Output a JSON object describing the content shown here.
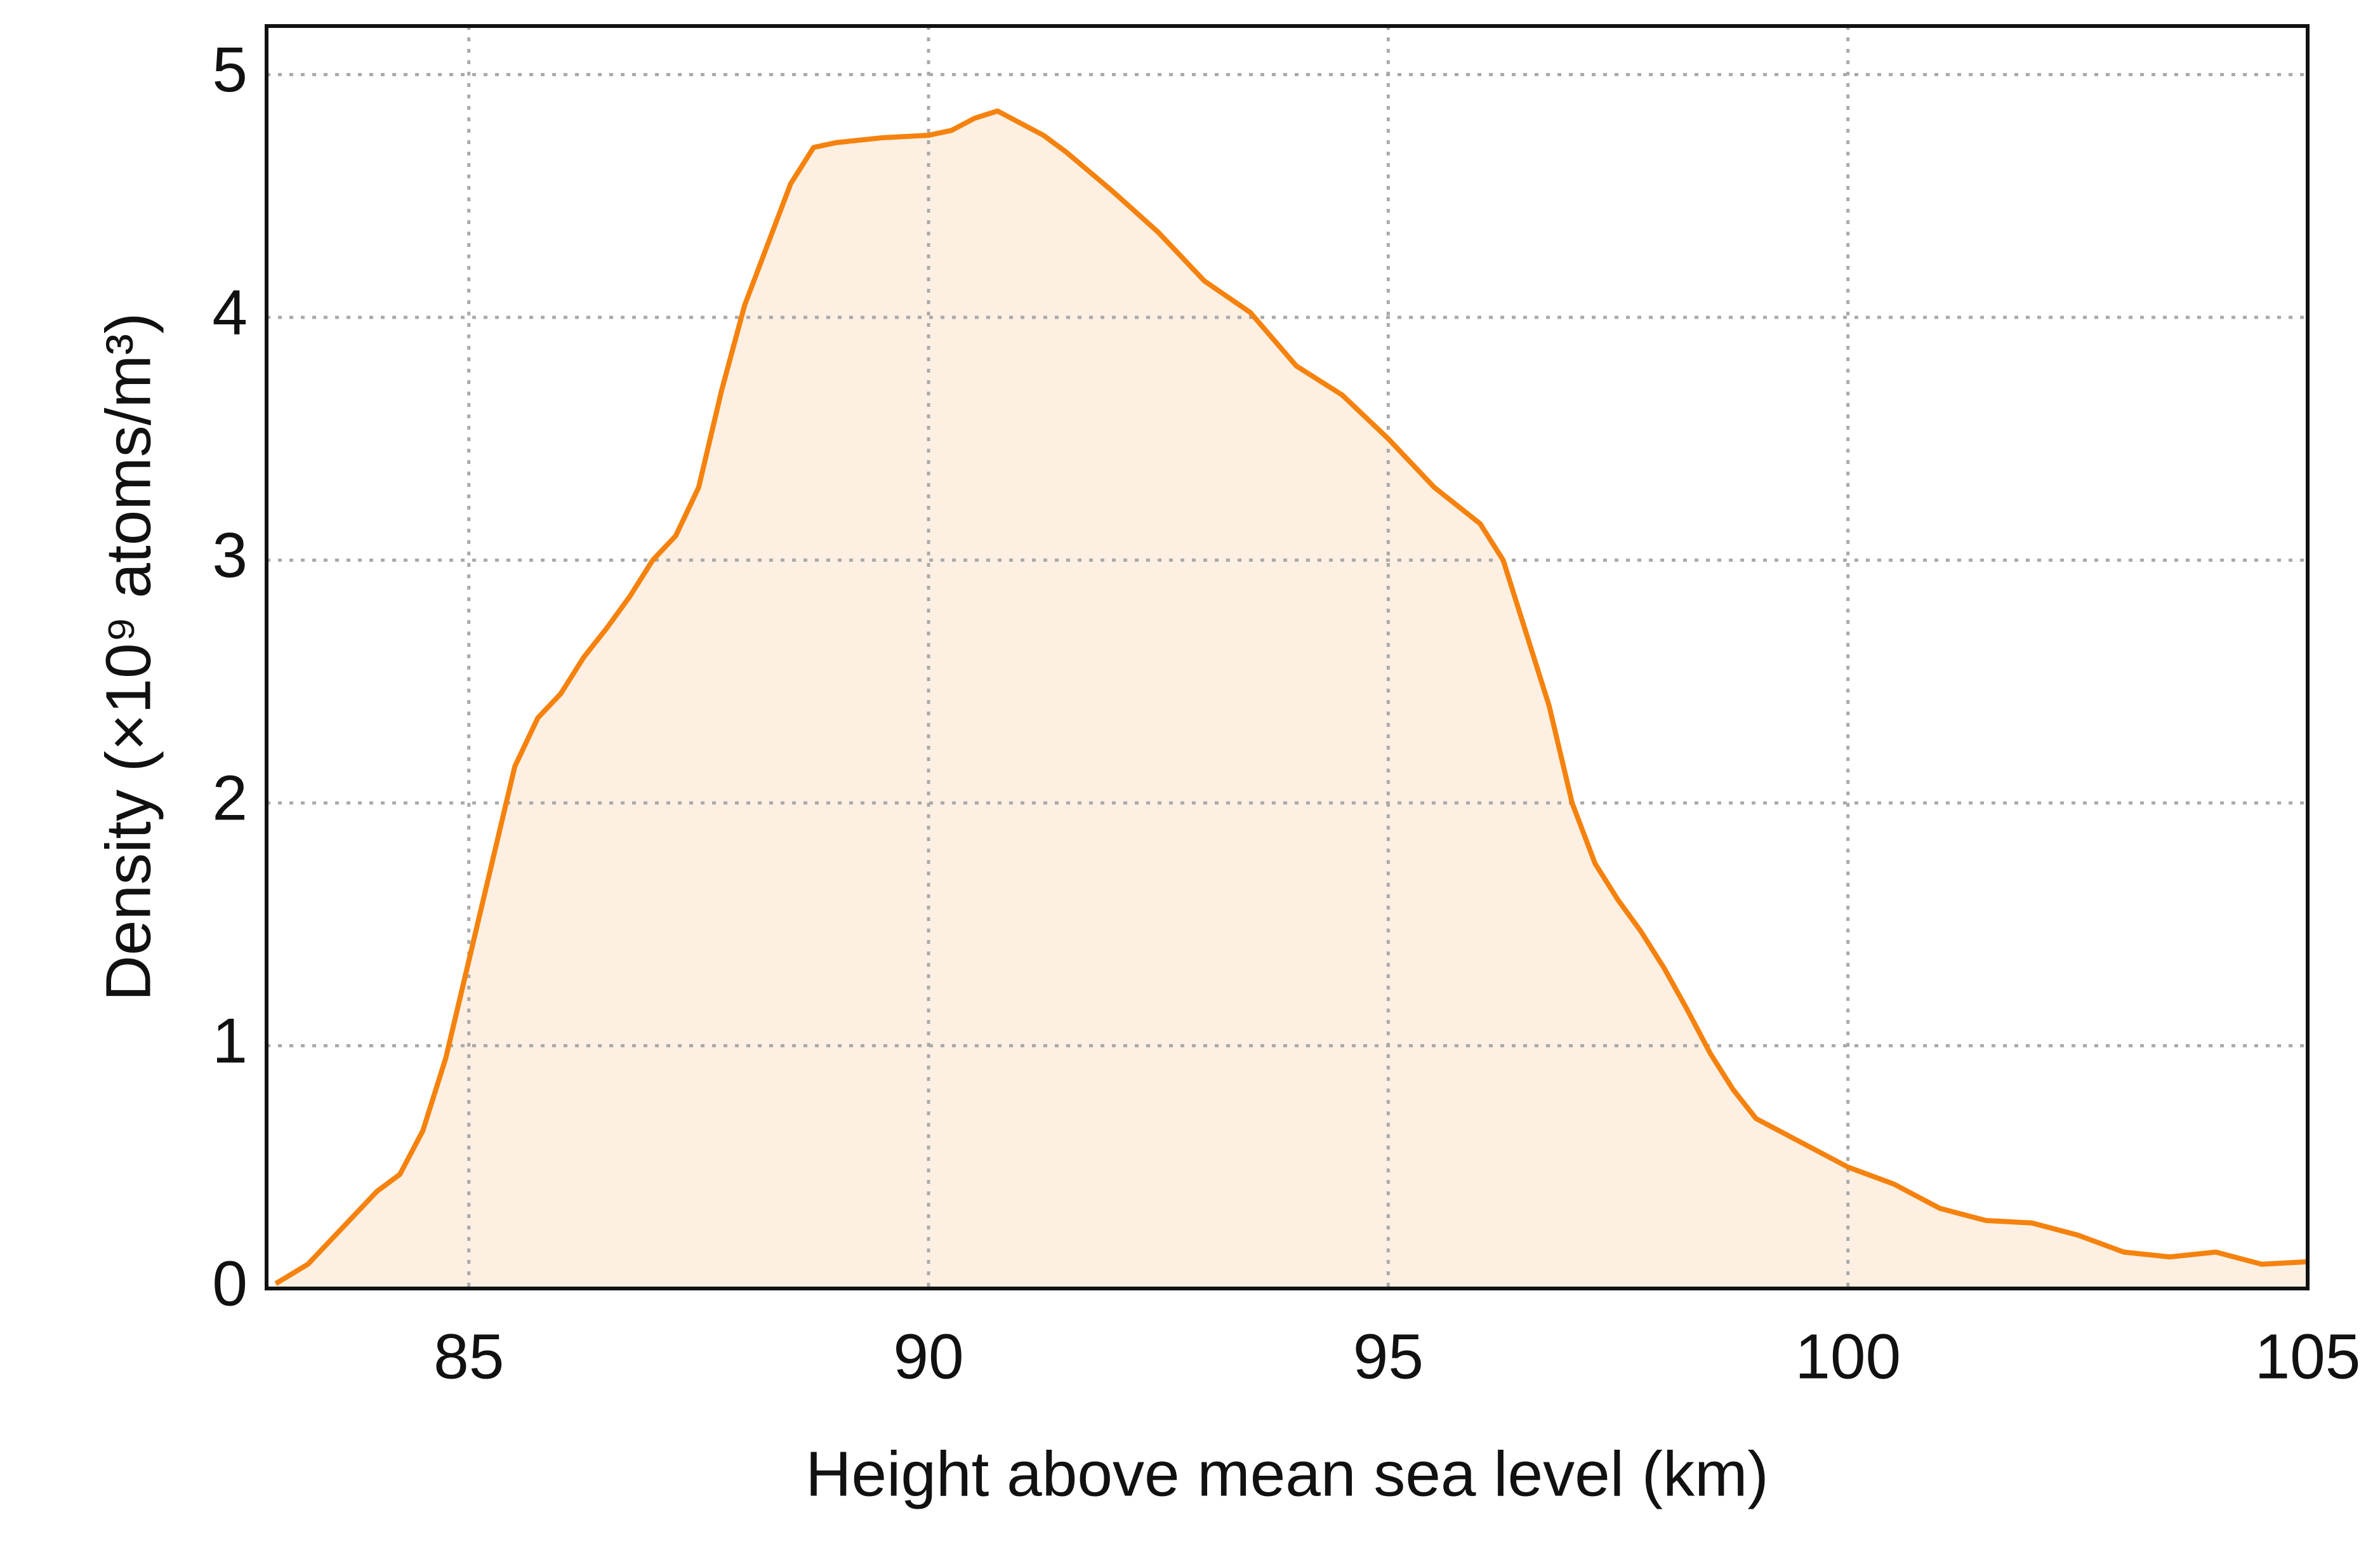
{
  "chart_data": {
    "type": "line",
    "xlabel": "Height above mean sea level (km)",
    "ylabel": "Density (×10⁹ atoms/m³)",
    "x": [
      82.9,
      83.25,
      83.5,
      83.75,
      84.0,
      84.25,
      84.5,
      84.75,
      85.0,
      85.25,
      85.5,
      85.75,
      86.0,
      86.25,
      86.5,
      86.75,
      87.0,
      87.25,
      87.5,
      87.75,
      88.0,
      88.25,
      88.5,
      88.75,
      89.0,
      89.5,
      90.0,
      90.25,
      90.5,
      90.75,
      91.0,
      91.25,
      91.5,
      91.75,
      92.0,
      92.5,
      93.0,
      93.5,
      94.0,
      94.5,
      95.0,
      95.5,
      96.0,
      96.25,
      96.5,
      96.75,
      97.0,
      97.25,
      97.5,
      97.75,
      98.0,
      98.25,
      98.5,
      98.75,
      99.0,
      99.5,
      100.0,
      100.5,
      101.0,
      101.5,
      102.0,
      102.5,
      103.0,
      103.5,
      104.0,
      104.5,
      105.0
    ],
    "series": [
      {
        "color": "#f5820d",
        "fill": "#fdefe2",
        "values": [
          0.02,
          0.1,
          0.2,
          0.3,
          0.4,
          0.47,
          0.65,
          0.95,
          1.35,
          1.75,
          2.15,
          2.35,
          2.45,
          2.6,
          2.72,
          2.85,
          3.0,
          3.1,
          3.3,
          3.7,
          4.05,
          4.3,
          4.55,
          4.7,
          4.72,
          4.74,
          4.75,
          4.77,
          4.82,
          4.85,
          4.8,
          4.75,
          4.68,
          4.6,
          4.52,
          4.35,
          4.15,
          4.02,
          3.8,
          3.68,
          3.5,
          3.3,
          3.15,
          3.0,
          2.7,
          2.4,
          2.0,
          1.75,
          1.6,
          1.47,
          1.32,
          1.15,
          0.97,
          0.82,
          0.7,
          0.6,
          0.5,
          0.43,
          0.33,
          0.28,
          0.27,
          0.22,
          0.15,
          0.13,
          0.15,
          0.1,
          0.11
        ]
      }
    ],
    "xlim": [
      82.8,
      105
    ],
    "xticks": [
      85,
      90,
      95,
      100,
      105
    ],
    "ylim": [
      0,
      5.2
    ],
    "yticks": [
      0,
      1,
      2,
      3,
      4,
      5
    ],
    "grid": true
  }
}
